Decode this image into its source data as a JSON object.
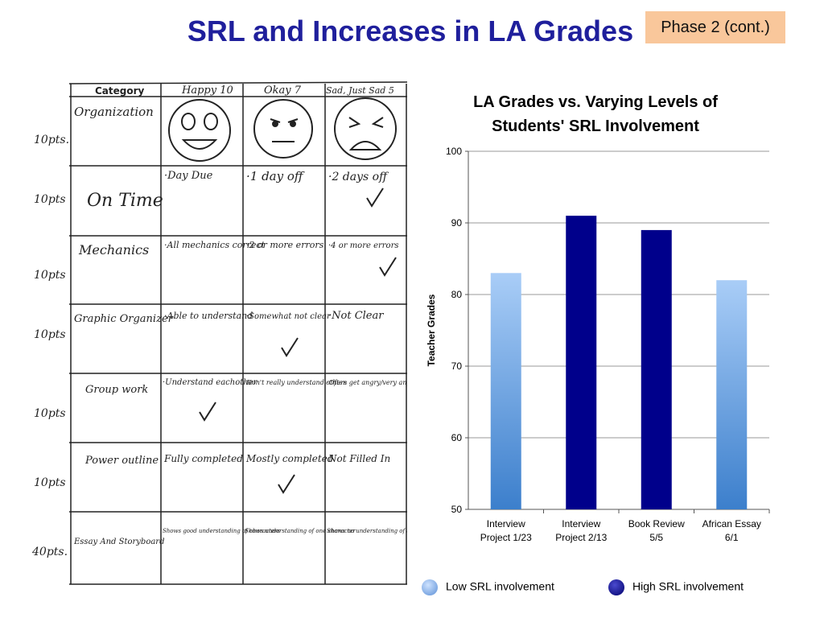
{
  "title": "SRL and Increases in LA Grades",
  "phase_label": "Phase 2 (cont.)",
  "rubric": {
    "header": {
      "category": "Category",
      "col1": "Happy 10",
      "col2": "Okay 7",
      "col3": "Sad, Just Sad 5"
    },
    "rows": [
      {
        "points": "10pts.",
        "category": "Organization",
        "c1": "",
        "c2": "",
        "c3": ""
      },
      {
        "points": "10pts",
        "category": "On Time",
        "c1": "·Day Due",
        "c2": "·1 day off",
        "c3": "·2 days off"
      },
      {
        "points": "10pts",
        "category": "Mechanics",
        "c1": "·All mechanics correct",
        "c2": "·2 or more errors",
        "c3": "·4 or more errors"
      },
      {
        "points": "10pts",
        "category": "Graphic Organizer",
        "c1": "·Able to understand",
        "c2": "·Somewhat not clear",
        "c3": "·Not Clear"
      },
      {
        "points": "10pts",
        "category": "Group work",
        "c1": "·Understand eachother",
        "c2": "·Don't really understand others",
        "c3": "·Often get angry/very angry."
      },
      {
        "points": "10pts",
        "category": "Power outline",
        "c1": "Fully completed",
        "c2": "Mostly completed",
        "c3": "Not Filled In"
      },
      {
        "points": "40pts.",
        "category": "Essay And Storyboard",
        "c1": "Shows good understanding of characters",
        "c2": "Shows understanding of one character",
        "c3": "Shows no understanding of any characters."
      }
    ]
  },
  "chart_data": {
    "type": "bar",
    "title": "LA Grades vs. Varying Levels of Students' SRL Involvement",
    "ylabel": "Teacher Grades",
    "xlabel": "",
    "ylim": [
      50,
      100
    ],
    "yticks": [
      50,
      60,
      70,
      80,
      90,
      100
    ],
    "categories": [
      "Interview Project 1/23",
      "Interview Project 2/13",
      "Book Review 5/5",
      "African Essay 6/1"
    ],
    "category_lines": [
      [
        "Interview",
        "Project 1/23"
      ],
      [
        "Interview",
        "Project 2/13"
      ],
      [
        "Book Review",
        "5/5"
      ],
      [
        "African Essay",
        "6/1"
      ]
    ],
    "values": [
      83,
      91,
      89,
      82
    ],
    "levels": [
      "low",
      "high",
      "high",
      "low"
    ],
    "grid": true,
    "legend_position": "bottom",
    "series": [
      {
        "name": "Low SRL involvement",
        "key": "low",
        "color": "#8db9ee"
      },
      {
        "name": "High SRL involvement",
        "key": "high",
        "color": "#00008b"
      }
    ]
  }
}
